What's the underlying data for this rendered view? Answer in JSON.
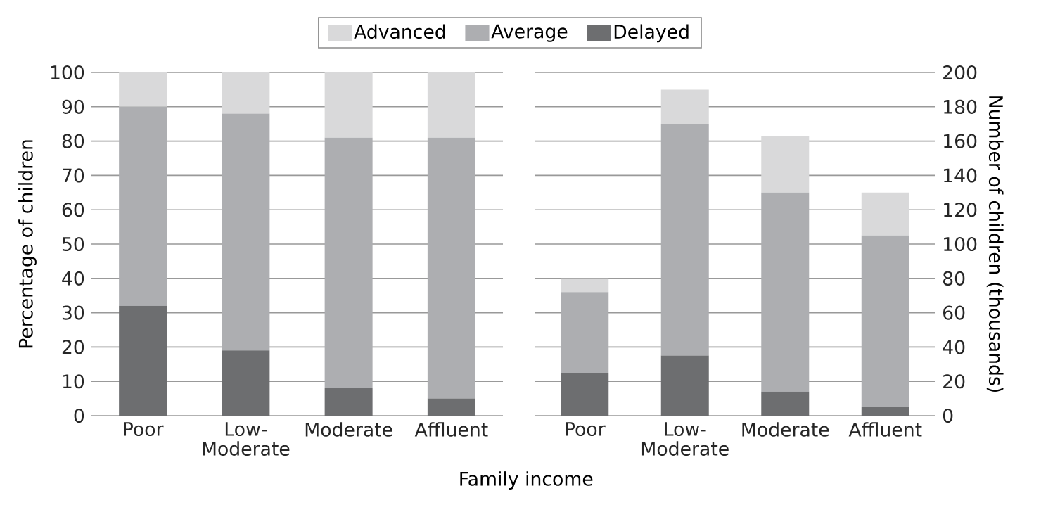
{
  "chart_data": [
    {
      "type": "bar",
      "stacked": true,
      "ylabel": "Percentage of children",
      "xlabel": "Family income",
      "categories": [
        "Poor",
        "Low-Moderate",
        "Moderate",
        "Affluent"
      ],
      "ylim": [
        0,
        100
      ],
      "yticks": [
        0,
        10,
        20,
        30,
        40,
        50,
        60,
        70,
        80,
        90,
        100
      ],
      "grid": "y",
      "legend": "top",
      "series": [
        {
          "name": "Delayed",
          "color": "#6d6e70",
          "values": [
            32,
            19,
            8,
            5
          ]
        },
        {
          "name": "Average",
          "color": "#adaeb1",
          "values": [
            58,
            69,
            73,
            76
          ]
        },
        {
          "name": "Advanced",
          "color": "#d9d9da",
          "values": [
            10,
            12,
            19,
            19
          ]
        }
      ]
    },
    {
      "type": "bar",
      "stacked": true,
      "ylabel": "Number of children (thousands)",
      "categories": [
        "Poor",
        "Low-Moderate",
        "Moderate",
        "Affluent"
      ],
      "ylim": [
        0,
        200
      ],
      "yticks": [
        0,
        20,
        40,
        60,
        80,
        100,
        120,
        140,
        160,
        180,
        200
      ],
      "grid": "y",
      "series": [
        {
          "color": "#6d6e70",
          "values": [
            25,
            35,
            14,
            5
          ]
        },
        {
          "color": "#adaeb1",
          "values": [
            47,
            135,
            116,
            100
          ]
        },
        {
          "color": "#d9d9da",
          "values": [
            8,
            20,
            33,
            25
          ]
        }
      ]
    }
  ]
}
